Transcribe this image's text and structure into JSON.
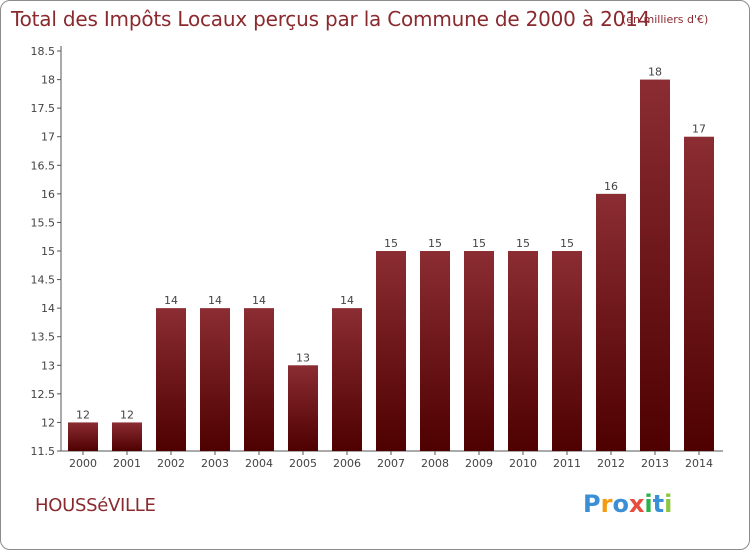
{
  "title": "Total des Impôts Locaux perçus par la Commune de 2000 à 2014",
  "subtitle": "(en milliers d'€)",
  "commune": "HOUSSéVILLE",
  "logo": {
    "text": "Proxiti",
    "letters": [
      "P",
      "r",
      "o",
      "x",
      "i",
      "t",
      "i"
    ]
  },
  "colors": {
    "bar_top": "#8b2d33",
    "bar_bottom": "#4e0000",
    "text": "#8a2a2e",
    "axis": "#555555",
    "grid": "#cccccc"
  },
  "chart_data": {
    "type": "bar",
    "categories": [
      "2000",
      "2001",
      "2002",
      "2003",
      "2004",
      "2005",
      "2006",
      "2007",
      "2008",
      "2009",
      "2010",
      "2011",
      "2012",
      "2013",
      "2014"
    ],
    "values": [
      12,
      12,
      14,
      14,
      14,
      13,
      14,
      15,
      15,
      15,
      15,
      15,
      16,
      18,
      17
    ],
    "data_labels": [
      "12",
      "12",
      "14",
      "14",
      "14",
      "13",
      "14",
      "15",
      "15",
      "15",
      "15",
      "15",
      "16",
      "18",
      "17"
    ],
    "ylim": [
      11.5,
      18.5
    ],
    "yticks": [
      11.5,
      12,
      12.5,
      13,
      13.5,
      14,
      14.5,
      15,
      15.5,
      16,
      16.5,
      17,
      17.5,
      18,
      18.5
    ],
    "ytick_labels": [
      "11.5",
      "12",
      "12.5",
      "13",
      "13.5",
      "14",
      "14.5",
      "15",
      "15.5",
      "16",
      "16.5",
      "17",
      "17.5",
      "18",
      "18.5"
    ],
    "grid": false
  }
}
